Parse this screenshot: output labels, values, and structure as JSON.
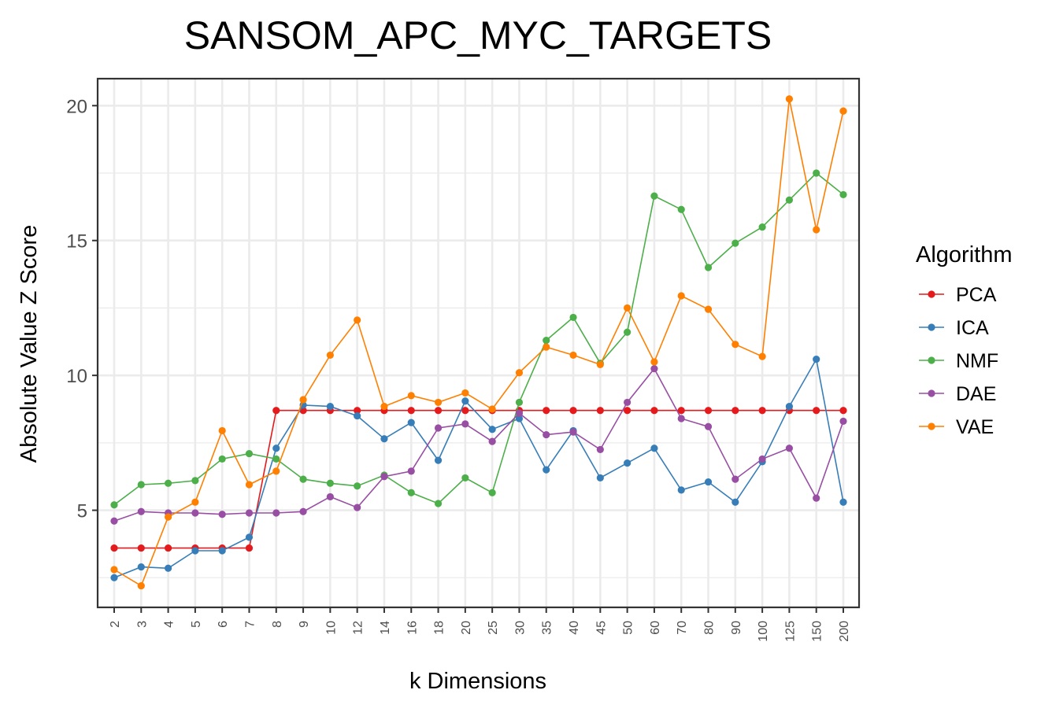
{
  "chart_data": {
    "type": "line",
    "title": "SANSOM_APC_MYC_TARGETS",
    "xlabel": "k Dimensions",
    "ylabel": "Absolute Value Z Score",
    "categories": [
      "2",
      "3",
      "4",
      "5",
      "6",
      "7",
      "8",
      "9",
      "10",
      "12",
      "14",
      "16",
      "18",
      "20",
      "25",
      "30",
      "35",
      "40",
      "45",
      "50",
      "60",
      "70",
      "80",
      "90",
      "100",
      "125",
      "150",
      "200"
    ],
    "ylim": [
      1.4,
      21.0
    ],
    "yticks": [
      5,
      10,
      15,
      20
    ],
    "grid": true,
    "legend": {
      "title": "Algorithm",
      "position": "right"
    },
    "series": [
      {
        "name": "PCA",
        "color": "#e41a1c",
        "values": [
          3.6,
          3.6,
          3.6,
          3.6,
          3.6,
          3.6,
          8.7,
          8.7,
          8.7,
          8.7,
          8.7,
          8.7,
          8.7,
          8.7,
          8.7,
          8.7,
          8.7,
          8.7,
          8.7,
          8.7,
          8.7,
          8.7,
          8.7,
          8.7,
          8.7,
          8.7,
          8.7,
          8.7
        ]
      },
      {
        "name": "ICA",
        "color": "#377eb8",
        "values": [
          2.5,
          2.9,
          2.85,
          3.5,
          3.5,
          4.0,
          7.3,
          8.9,
          8.85,
          8.5,
          7.65,
          8.25,
          6.85,
          9.05,
          8.0,
          8.4,
          6.5,
          7.95,
          6.2,
          6.75,
          7.3,
          5.75,
          6.05,
          5.3,
          6.8,
          8.85,
          10.6,
          5.3
        ]
      },
      {
        "name": "NMF",
        "color": "#4daf4a",
        "values": [
          5.2,
          5.95,
          6.0,
          6.1,
          6.9,
          7.1,
          6.9,
          6.15,
          6.0,
          5.9,
          6.3,
          5.65,
          5.25,
          6.2,
          5.65,
          9.0,
          11.3,
          12.15,
          10.45,
          11.6,
          16.65,
          16.15,
          14.0,
          14.9,
          15.5,
          16.5,
          17.5,
          16.7
        ]
      },
      {
        "name": "DAE",
        "color": "#984ea3",
        "values": [
          4.6,
          4.95,
          4.9,
          4.9,
          4.85,
          4.9,
          4.9,
          4.95,
          5.5,
          5.1,
          6.25,
          6.45,
          8.05,
          8.2,
          7.55,
          8.6,
          7.8,
          7.9,
          7.25,
          9.0,
          10.25,
          8.4,
          8.1,
          6.15,
          6.9,
          7.3,
          5.45,
          8.3
        ]
      },
      {
        "name": "VAE",
        "color": "#ff7f00",
        "values": [
          2.8,
          2.2,
          4.75,
          5.3,
          7.95,
          5.95,
          6.45,
          9.1,
          10.75,
          12.05,
          8.85,
          9.25,
          9.0,
          9.35,
          8.75,
          10.1,
          11.05,
          10.75,
          10.4,
          12.5,
          10.5,
          12.95,
          12.45,
          11.15,
          10.7,
          20.25,
          15.4,
          19.8
        ]
      }
    ]
  }
}
